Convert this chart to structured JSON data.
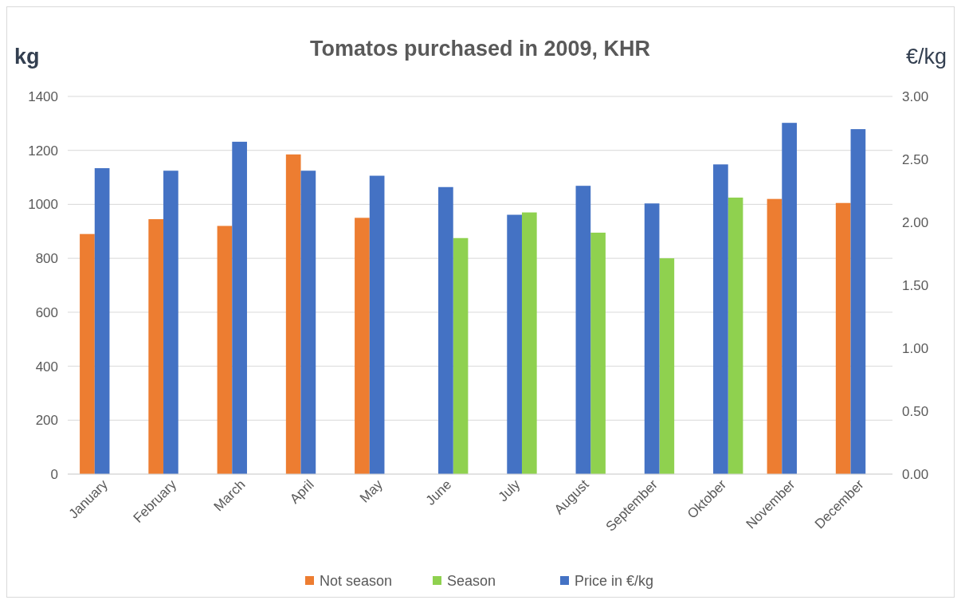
{
  "chart_data": {
    "type": "bar",
    "title": "Tomatos purchased in 2009, KHR",
    "ylabel": "kg",
    "y2label": "€/kg",
    "categories": [
      "January",
      "February",
      "March",
      "April",
      "May",
      "June",
      "July",
      "August",
      "September",
      "Oktober",
      "November",
      "December"
    ],
    "series": [
      {
        "name": "Not season",
        "color": "#ed7d31",
        "values": [
          890,
          945,
          920,
          1185,
          950,
          null,
          null,
          null,
          null,
          null,
          1020,
          1005
        ]
      },
      {
        "name": "Season",
        "color": "#8fd14f",
        "values": [
          null,
          null,
          null,
          null,
          null,
          875,
          970,
          895,
          800,
          1025,
          null,
          null
        ]
      },
      {
        "name": "Price in €/kg",
        "color": "#4472c4",
        "axis": "y2",
        "values": [
          2.43,
          2.41,
          2.64,
          2.41,
          2.37,
          2.28,
          2.06,
          2.29,
          2.15,
          2.46,
          2.79,
          2.74
        ]
      }
    ],
    "ylim": [
      0,
      1400
    ],
    "yticks": [
      0,
      200,
      400,
      600,
      800,
      1000,
      1200,
      1400
    ],
    "y2lim": [
      0,
      3
    ],
    "y2ticks": [
      {
        "value": 0,
        "label": "0.00"
      },
      {
        "value": 0.5,
        "label": "0.50"
      },
      {
        "value": 1,
        "label": "1.00"
      },
      {
        "value": 1.5,
        "label": "1.50"
      },
      {
        "value": 2,
        "label": "2.00"
      },
      {
        "value": 2.5,
        "label": "2.50"
      },
      {
        "value": 3,
        "label": "3.00"
      }
    ],
    "grid": "y",
    "legend": "bottom"
  }
}
